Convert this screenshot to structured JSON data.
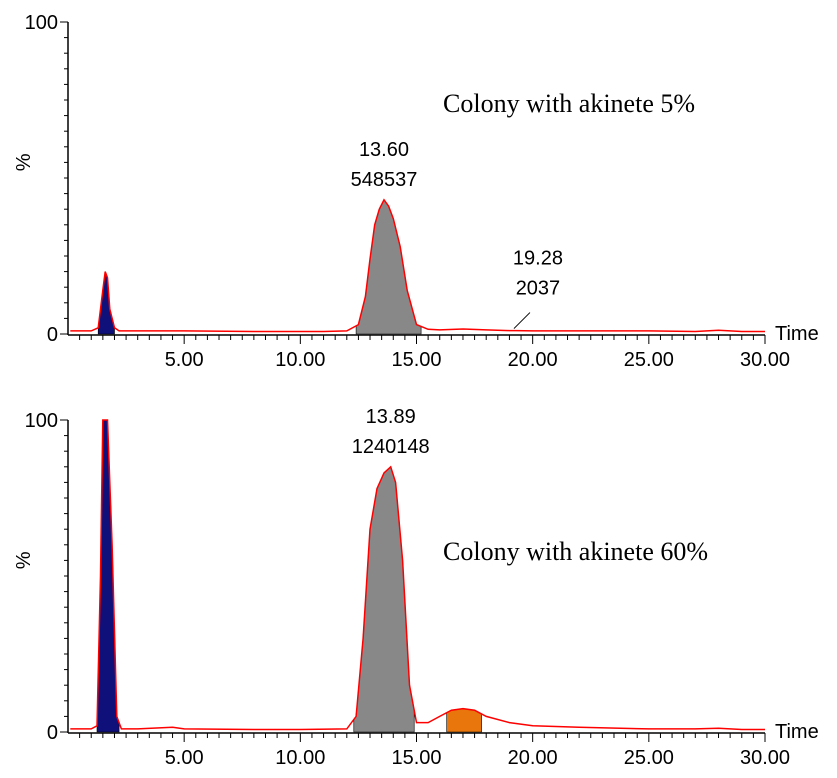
{
  "chart_data": [
    {
      "type": "area",
      "title": "Colony with akinete 5%",
      "xlabel": "Time",
      "ylabel": "%",
      "xlim": [
        0,
        30
      ],
      "ylim": [
        0,
        100
      ],
      "xticks": [
        "5.00",
        "10.00",
        "15.00",
        "20.00",
        "25.00",
        "30.00"
      ],
      "yticks": [
        "0",
        "100"
      ],
      "series": [
        {
          "x": [
            0.1,
            1.0,
            1.3,
            1.5,
            1.6,
            1.7,
            1.8,
            2.0,
            2.2,
            3.0,
            5.0,
            8.0,
            10.0,
            11.0,
            12.0,
            12.5,
            12.8,
            13.0,
            13.2,
            13.4,
            13.6,
            13.8,
            14.0,
            14.3,
            14.6,
            15.0,
            15.5,
            16.0,
            17.0,
            18.0,
            19.0,
            19.28,
            20.0,
            22.0,
            25.0,
            27.0,
            28.0,
            29.0,
            30.0
          ],
          "y": [
            1,
            1,
            2,
            14,
            20,
            18,
            8,
            2,
            1,
            1,
            1,
            0.8,
            0.8,
            0.8,
            1,
            3,
            12,
            24,
            35,
            40,
            43,
            41,
            37,
            28,
            14,
            3,
            1.5,
            1.3,
            1.6,
            1.3,
            1.1,
            1.1,
            1,
            1,
            1,
            0.8,
            1.2,
            0.8,
            0.8
          ]
        }
      ],
      "peaks": [
        {
          "label_time": "13.60",
          "label_area": "548537",
          "x": 13.6,
          "y": 43,
          "color": "#888888"
        },
        {
          "label_time": "19.28",
          "label_area": "2037",
          "x": 19.28,
          "y": 1.1
        }
      ],
      "fills": [
        {
          "from": 1.3,
          "to": 2.0,
          "color": "#10107a"
        },
        {
          "from": 12.4,
          "to": 15.2,
          "color": "#888888"
        }
      ]
    },
    {
      "type": "area",
      "title": "Colony with akinete 60%",
      "xlabel": "Time",
      "ylabel": "%",
      "xlim": [
        0,
        30
      ],
      "ylim": [
        0,
        100
      ],
      "xticks": [
        "5.00",
        "10.00",
        "15.00",
        "20.00",
        "25.00",
        "30.00"
      ],
      "yticks": [
        "0",
        "100"
      ],
      "series": [
        {
          "x": [
            0.1,
            1.0,
            1.25,
            1.4,
            1.5,
            1.7,
            1.9,
            2.1,
            2.3,
            3.0,
            4.5,
            5.0,
            8.0,
            10.0,
            12.0,
            12.4,
            12.7,
            13.0,
            13.3,
            13.6,
            13.89,
            14.1,
            14.4,
            14.7,
            15.0,
            15.5,
            16.0,
            16.5,
            17.0,
            17.5,
            18.0,
            19.0,
            20.0,
            22.0,
            25.0,
            27.0,
            28.0,
            29.0,
            30.0
          ],
          "y": [
            1,
            1,
            2,
            50,
            100,
            100,
            60,
            5,
            1,
            1,
            1.5,
            1,
            0.8,
            0.8,
            1,
            5,
            30,
            65,
            78,
            83,
            85,
            80,
            55,
            15,
            3,
            3,
            5,
            7,
            7.5,
            7,
            5,
            3,
            2,
            1.5,
            1,
            1,
            1.2,
            0.8,
            0.8
          ]
        }
      ],
      "peaks": [
        {
          "label_time": "13.89",
          "label_area": "1240148",
          "x": 13.89,
          "y": 85,
          "color": "#888888"
        }
      ],
      "fills": [
        {
          "from": 1.25,
          "to": 2.2,
          "color": "#10107a"
        },
        {
          "from": 12.3,
          "to": 14.9,
          "color": "#888888"
        },
        {
          "from": 16.3,
          "to": 17.8,
          "color": "#e8760c"
        }
      ]
    }
  ]
}
